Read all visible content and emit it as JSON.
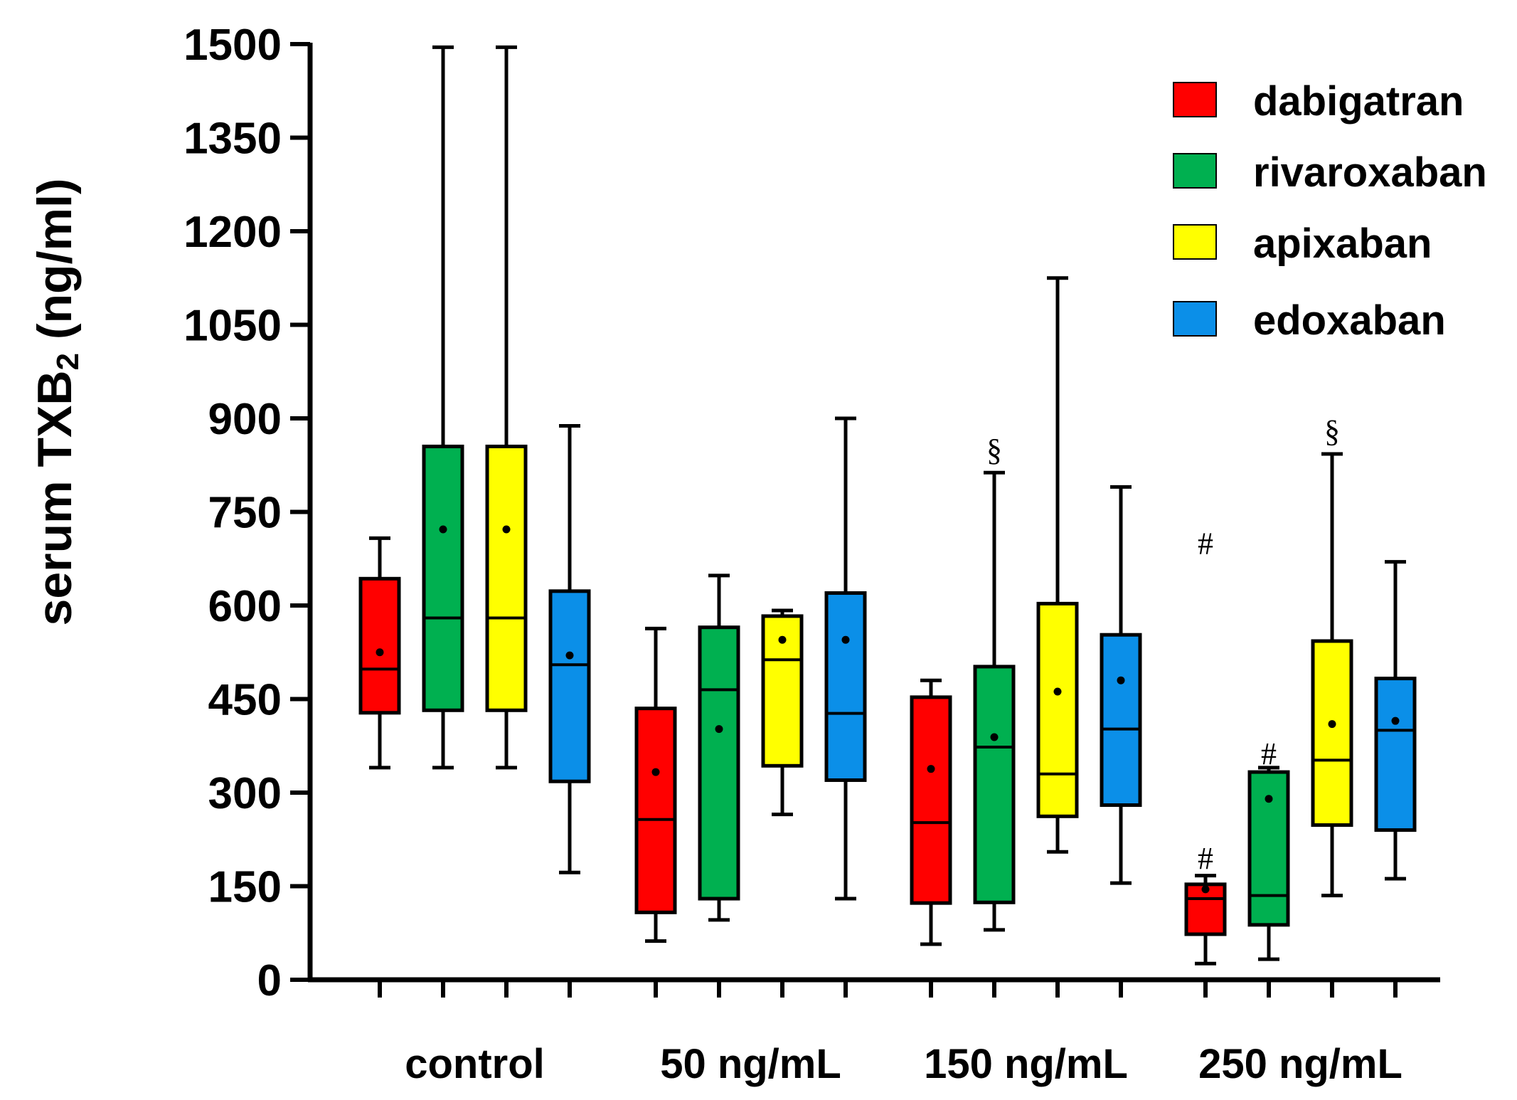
{
  "chart_data": {
    "type": "box",
    "title": "",
    "ylabel": "serum TXB2 (ng/ml)",
    "ylabel_main": "serum TXB",
    "ylabel_sub": "2",
    "ylabel_unit": " (ng/ml)",
    "xlabel": "",
    "ylim": [
      0,
      1500
    ],
    "yticks": [
      0,
      150,
      300,
      450,
      600,
      750,
      900,
      1050,
      1200,
      1350,
      1500
    ],
    "ytick_labels": [
      "0",
      "150",
      "300",
      "450",
      "600",
      "750",
      "900",
      "1050",
      "1200",
      "1350",
      "1500"
    ],
    "categories": [
      "control",
      "50 ng/mL",
      "150 ng/mL",
      "250 ng/mL"
    ],
    "legend_position": "top-right",
    "series": [
      {
        "name": "dabigatran",
        "color": "#ff0000",
        "boxes": [
          {
            "min": 340,
            "q1": 428,
            "median": 498,
            "q3": 643,
            "max": 708,
            "mean": 525
          },
          {
            "min": 62,
            "q1": 108,
            "median": 257,
            "q3": 435,
            "max": 563,
            "mean": 333
          },
          {
            "min": 57,
            "q1": 123,
            "median": 252,
            "q3": 453,
            "max": 480,
            "mean": 338
          },
          {
            "min": 26,
            "q1": 73,
            "median": 130,
            "q3": 153,
            "max": 167,
            "mean": 145
          }
        ]
      },
      {
        "name": "rivaroxaban",
        "color": "#00b050",
        "boxes": [
          {
            "min": 340,
            "q1": 432,
            "median": 580,
            "q3": 855,
            "max": 1495,
            "mean": 722
          },
          {
            "min": 96,
            "q1": 130,
            "median": 465,
            "q3": 565,
            "max": 648,
            "mean": 402
          },
          {
            "min": 80,
            "q1": 124,
            "median": 373,
            "q3": 502,
            "max": 813,
            "mean": 389
          },
          {
            "min": 33,
            "q1": 88,
            "median": 135,
            "q3": 333,
            "max": 340,
            "mean": 290
          }
        ]
      },
      {
        "name": "apixaban",
        "color": "#ffff00",
        "boxes": [
          {
            "min": 340,
            "q1": 432,
            "median": 580,
            "q3": 855,
            "max": 1495,
            "mean": 722
          },
          {
            "min": 265,
            "q1": 343,
            "median": 513,
            "q3": 583,
            "max": 592,
            "mean": 545
          },
          {
            "min": 205,
            "q1": 262,
            "median": 330,
            "q3": 603,
            "max": 1125,
            "mean": 462
          },
          {
            "min": 135,
            "q1": 248,
            "median": 352,
            "q3": 543,
            "max": 843,
            "mean": 410
          }
        ]
      },
      {
        "name": "edoxaban",
        "color": "#0b8fe8",
        "boxes": [
          {
            "min": 172,
            "q1": 318,
            "median": 505,
            "q3": 623,
            "max": 888,
            "mean": 520
          },
          {
            "min": 130,
            "q1": 320,
            "median": 427,
            "q3": 620,
            "max": 900,
            "mean": 545
          },
          {
            "min": 155,
            "q1": 280,
            "median": 402,
            "q3": 553,
            "max": 790,
            "mean": 480
          },
          {
            "min": 162,
            "q1": 240,
            "median": 400,
            "q3": 483,
            "max": 670,
            "mean": 415
          }
        ]
      }
    ],
    "annotations": [
      {
        "text": "§",
        "category": "150 ng/mL",
        "series": "rivaroxaban",
        "y": 850
      },
      {
        "text": "§",
        "category": "250 ng/mL",
        "series": "apixaban",
        "y": 880
      },
      {
        "text": "#",
        "category": "250 ng/mL",
        "series": "dabigatran",
        "y": 700
      },
      {
        "text": "#",
        "category": "250 ng/mL",
        "series": "dabigatran",
        "y": 195
      },
      {
        "text": "#",
        "category": "250 ng/mL",
        "series": "rivaroxaban",
        "y": 363
      }
    ]
  }
}
